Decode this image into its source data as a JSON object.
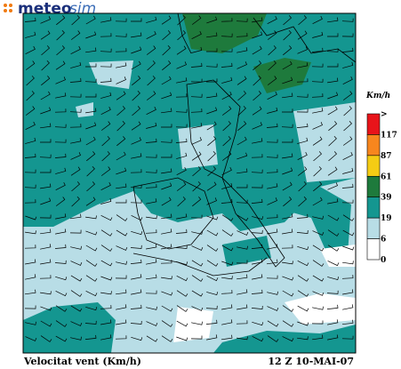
{
  "logo": [
    "meteo",
    "sim"
  ],
  "legend": {
    "unit": "Km/h",
    "labels": [
      ">",
      "117",
      "87",
      "61",
      "39",
      "19",
      "6",
      "0"
    ],
    "colors": [
      "#e8141a",
      "#f7861e",
      "#f4cc14",
      "#1e7a3c",
      "#149690",
      "#b8dde6",
      "#ffffff"
    ]
  },
  "caption": "Velocitat vent (Km/h)",
  "timestamp": "12 Z 10-MAI-07"
}
